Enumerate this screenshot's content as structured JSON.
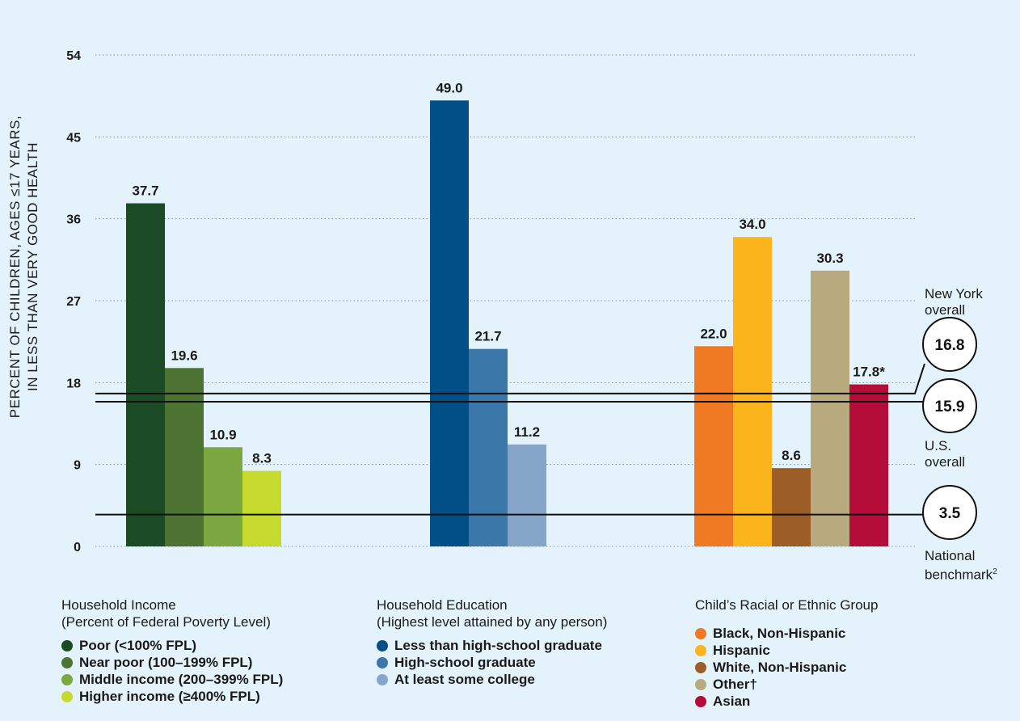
{
  "chart_data": {
    "type": "bar",
    "ylabel": "PERCENT OF CHILDREN, AGES ≤17 YEARS, IN LESS THAN VERY GOOD HEALTH",
    "ylabel_lines": [
      "PERCENT OF CHILDREN, AGES ≤17 YEARS,",
      "IN LESS THAN VERY GOOD HEALTH"
    ],
    "ylim": [
      0,
      54
    ],
    "yticks": [
      0,
      9,
      18,
      27,
      36,
      45,
      54
    ],
    "grid": true,
    "groups": [
      {
        "title": "Household Income",
        "subtitle": "(Percent of Federal Poverty Level)",
        "bars": [
          {
            "name": "Poor (<100% FPL)",
            "value": 37.7,
            "label": "37.7",
            "color": "#1b4b24"
          },
          {
            "name": "Near poor (100–199% FPL)",
            "value": 19.6,
            "label": "19.6",
            "color": "#4c7331"
          },
          {
            "name": "Middle income (200–399% FPL)",
            "value": 10.9,
            "label": "10.9",
            "color": "#7aa73f"
          },
          {
            "name": "Higher income (≥400% FPL)",
            "value": 8.3,
            "label": "8.3",
            "color": "#c6da2e"
          }
        ]
      },
      {
        "title": "Household Education",
        "subtitle": "(Highest level attained by any person)",
        "bars": [
          {
            "name": "Less than high-school graduate",
            "value": 49.0,
            "label": "49.0",
            "color": "#004f86"
          },
          {
            "name": "High-school graduate",
            "value": 21.7,
            "label": "21.7",
            "color": "#3b77a8"
          },
          {
            "name": "At least some college",
            "value": 11.2,
            "label": "11.2",
            "color": "#86a6c9"
          }
        ]
      },
      {
        "title": "Child’s Racial or Ethnic Group",
        "subtitle": "",
        "bars": [
          {
            "name": "Black, Non-Hispanic",
            "value": 22.0,
            "label": "22.0",
            "color": "#f07a23"
          },
          {
            "name": "Hispanic",
            "value": 34.0,
            "label": "34.0",
            "color": "#fbb41b"
          },
          {
            "name": "White, Non-Hispanic",
            "value": 8.6,
            "label": "8.6",
            "color": "#9c5d26"
          },
          {
            "name": "Other†",
            "value": 30.3,
            "label": "30.3",
            "color": "#b8a97e"
          },
          {
            "name": "Asian",
            "value": 17.8,
            "label": "17.8*",
            "color": "#b50d3a"
          }
        ]
      }
    ],
    "reference_lines": [
      {
        "key": "ny",
        "value": 16.8,
        "label": "16.8",
        "caption_lines": [
          "New York",
          "overall"
        ]
      },
      {
        "key": "us",
        "value": 15.9,
        "label": "15.9",
        "caption_lines": [
          "U.S.",
          "overall"
        ]
      },
      {
        "key": "bench",
        "value": 3.5,
        "label": "3.5",
        "caption_lines": [
          "National",
          "benchmark"
        ],
        "caption_sup": "2"
      }
    ]
  }
}
